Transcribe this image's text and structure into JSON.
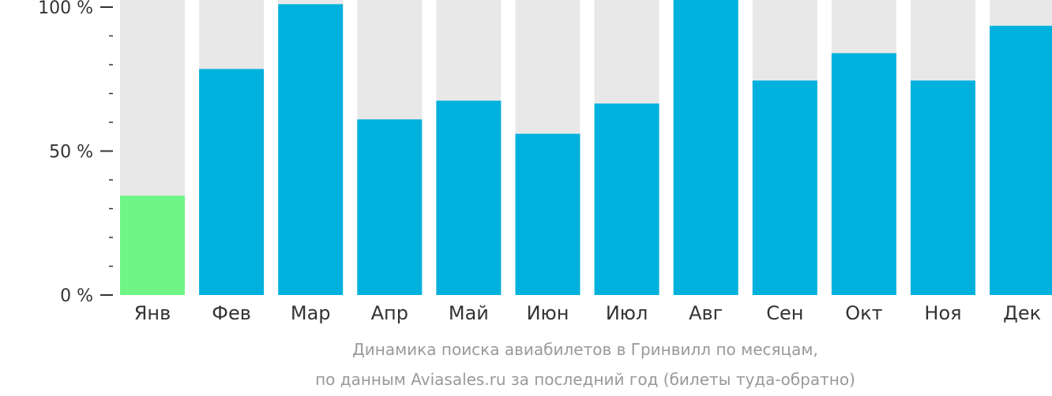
{
  "chart_data": {
    "type": "bar",
    "categories": [
      "Янв",
      "Фев",
      "Мар",
      "Апр",
      "Май",
      "Июн",
      "Июл",
      "Авг",
      "Сен",
      "Окт",
      "Ноя",
      "Дек"
    ],
    "values": [
      34.5,
      78.5,
      101,
      61,
      67.5,
      56,
      66.5,
      105,
      74.5,
      84,
      74.5,
      93.5
    ],
    "highlight_index": 0,
    "ylim": [
      0,
      100
    ],
    "yticks": [
      {
        "value": 0,
        "label": "0 %"
      },
      {
        "value": 50,
        "label": "50 %"
      },
      {
        "value": 100,
        "label": "100 %"
      }
    ],
    "minor_tick_step": 10,
    "colors": {
      "bar": "#00b1dd",
      "highlight": "#6ef585",
      "background_bar": "#e8e8e8",
      "axis": "#333333"
    },
    "caption_lines": [
      "Динамика поиска авиабилетов в Гринвилл по месяцам,",
      "по данным Aviasales.ru за последний год (билеты туда-обратно)"
    ]
  }
}
